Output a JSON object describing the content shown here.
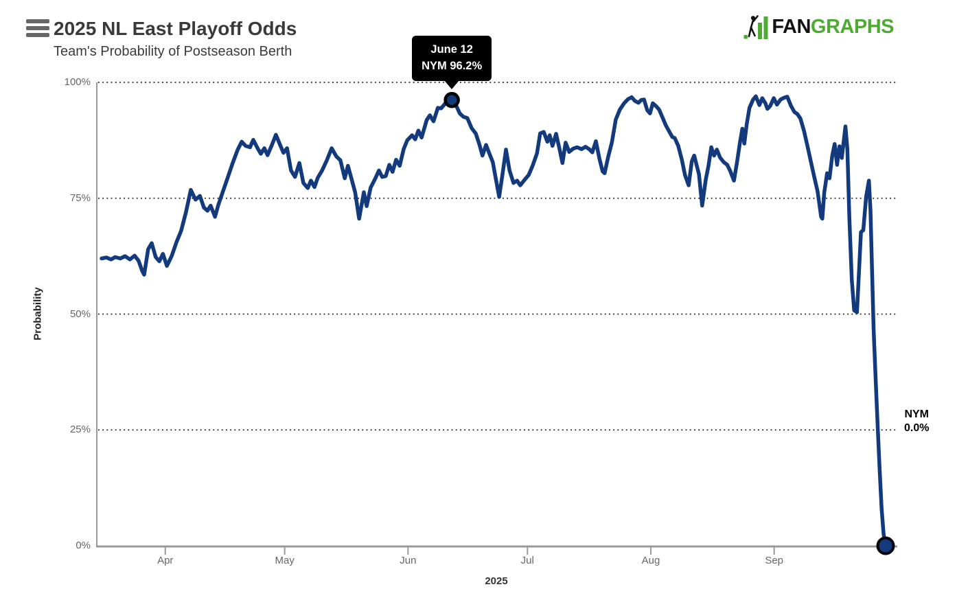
{
  "header": {
    "title": "2025 NL East Playoff Odds",
    "subtitle": "Team's Probability of Postseason Berth",
    "logo": {
      "fan": "FAN",
      "graphs": "GRAPHS"
    }
  },
  "tooltip": {
    "line1": "June 12",
    "line2": "NYM 96.2%"
  },
  "series_end_label": {
    "team": "NYM",
    "value": "0.0%"
  },
  "colors": {
    "line": "#123a7c",
    "marker_stroke": "#000000",
    "grid": "#1a1a1a",
    "axis": "#9a9a9a",
    "tick_label": "#666666",
    "title_text": "#3a3a3a",
    "logo_green": "#4dab33",
    "logo_black": "#111111",
    "tooltip_bg": "#000000",
    "tooltip_text": "#ffffff"
  },
  "chart_data": {
    "type": "line",
    "title": "2025 NL East Playoff Odds",
    "subtitle": "Team's Probability of Postseason Berth",
    "xlabel": "2025",
    "ylabel": "Probability",
    "ylim": [
      0,
      100
    ],
    "grid": "dotted horizontal",
    "legend": "none",
    "yticks": [
      {
        "value": 0,
        "label": "0%"
      },
      {
        "value": 25,
        "label": "25%"
      },
      {
        "value": 50,
        "label": "50%"
      },
      {
        "value": 75,
        "label": "75%"
      },
      {
        "value": 100,
        "label": "100%"
      }
    ],
    "x_axis": {
      "unit": "days since Mar 16, 2025",
      "start_day": 0,
      "end_day": 197,
      "month_ticks": [
        {
          "label": "Apr",
          "day": 16
        },
        {
          "label": "May",
          "day": 46
        },
        {
          "label": "Jun",
          "day": 77
        },
        {
          "label": "Jul",
          "day": 107
        },
        {
          "label": "Aug",
          "day": 138
        },
        {
          "label": "Sep",
          "day": 169
        }
      ]
    },
    "annotations": [
      {
        "id": "peak",
        "series": "NYM",
        "day": 88,
        "value": 96.2,
        "date_label": "June 12",
        "tooltip": true,
        "marker": true
      },
      {
        "id": "final",
        "series": "NYM",
        "day": 197,
        "value": 0.0,
        "label": "NYM 0.0%",
        "tooltip": false,
        "marker": true
      }
    ],
    "series": [
      {
        "name": "NYM",
        "color": "#123a7c",
        "points": [
          [
            0,
            62.0
          ],
          [
            1.2,
            62.2
          ],
          [
            2.4,
            61.8
          ],
          [
            3.4,
            62.3
          ],
          [
            4.7,
            62.0
          ],
          [
            5.9,
            62.5
          ],
          [
            7.1,
            61.8
          ],
          [
            8.3,
            62.6
          ],
          [
            9.3,
            61.5
          ],
          [
            10.2,
            59.3
          ],
          [
            10.7,
            58.5
          ],
          [
            11.7,
            64.0
          ],
          [
            12.6,
            65.3
          ],
          [
            13.6,
            62.3
          ],
          [
            14.5,
            61.4
          ],
          [
            15.4,
            63.0
          ],
          [
            16.4,
            60.4
          ],
          [
            17.6,
            62.5
          ],
          [
            18.8,
            65.5
          ],
          [
            20,
            68.0
          ],
          [
            21.2,
            72.0
          ],
          [
            22.4,
            76.8
          ],
          [
            23.6,
            74.7
          ],
          [
            24.7,
            75.5
          ],
          [
            25.7,
            73.0
          ],
          [
            26.6,
            72.3
          ],
          [
            27.4,
            73.4
          ],
          [
            28.5,
            71.0
          ],
          [
            29.3,
            73.5
          ],
          [
            30.5,
            76.5
          ],
          [
            31.7,
            79.5
          ],
          [
            32.9,
            82.5
          ],
          [
            34.2,
            85.5
          ],
          [
            35.2,
            87.2
          ],
          [
            36.2,
            86.3
          ],
          [
            37.3,
            86.0
          ],
          [
            38.1,
            87.6
          ],
          [
            39.2,
            85.8
          ],
          [
            40,
            84.6
          ],
          [
            40.9,
            85.8
          ],
          [
            41.7,
            84.3
          ],
          [
            42.8,
            86.5
          ],
          [
            43.8,
            88.7
          ],
          [
            44.9,
            86.4
          ],
          [
            45.7,
            84.8
          ],
          [
            46.6,
            85.8
          ],
          [
            47.6,
            81.0
          ],
          [
            48.6,
            79.6
          ],
          [
            49.7,
            82.6
          ],
          [
            50.7,
            78.3
          ],
          [
            51.8,
            77.2
          ],
          [
            52.6,
            78.8
          ],
          [
            53.5,
            77.4
          ],
          [
            54.3,
            79.4
          ],
          [
            55.4,
            81.0
          ],
          [
            56.6,
            83.2
          ],
          [
            57.8,
            85.8
          ],
          [
            59,
            84.0
          ],
          [
            60,
            83.2
          ],
          [
            61.1,
            79.3
          ],
          [
            61.9,
            82.0
          ],
          [
            62.8,
            79.2
          ],
          [
            63.7,
            76.3
          ],
          [
            64.7,
            70.6
          ],
          [
            65.9,
            76.3
          ],
          [
            66.6,
            73.3
          ],
          [
            67.6,
            77.3
          ],
          [
            68.8,
            79.3
          ],
          [
            69.7,
            81.0
          ],
          [
            70.5,
            79.6
          ],
          [
            71.4,
            79.8
          ],
          [
            72.3,
            82.2
          ],
          [
            73.1,
            80.7
          ],
          [
            74,
            83.3
          ],
          [
            74.9,
            82.0
          ],
          [
            75.9,
            85.6
          ],
          [
            76.8,
            87.5
          ],
          [
            78,
            88.6
          ],
          [
            78.8,
            87.7
          ],
          [
            79.6,
            89.6
          ],
          [
            80.4,
            88.1
          ],
          [
            81.7,
            91.9
          ],
          [
            82.5,
            92.9
          ],
          [
            83.4,
            91.6
          ],
          [
            84.5,
            94.5
          ],
          [
            85.3,
            94.4
          ],
          [
            86.5,
            95.6
          ],
          [
            88,
            96.2
          ],
          [
            89.2,
            94.8
          ],
          [
            90,
            93.3
          ],
          [
            90.9,
            92.6
          ],
          [
            91.9,
            92.3
          ],
          [
            93,
            90.1
          ],
          [
            94,
            89.0
          ],
          [
            94.9,
            86.7
          ],
          [
            95.7,
            84.2
          ],
          [
            96.6,
            86.5
          ],
          [
            97.5,
            84.5
          ],
          [
            98.3,
            82.8
          ],
          [
            99.2,
            78.5
          ],
          [
            99.9,
            75.3
          ],
          [
            100.7,
            80.0
          ],
          [
            101.6,
            85.5
          ],
          [
            102.5,
            81.0
          ],
          [
            103.5,
            78.3
          ],
          [
            104.4,
            78.8
          ],
          [
            105.2,
            77.8
          ],
          [
            106.3,
            79.0
          ],
          [
            107.3,
            80.0
          ],
          [
            108.3,
            82.0
          ],
          [
            109.4,
            84.7
          ],
          [
            110.2,
            89.0
          ],
          [
            111.1,
            89.3
          ],
          [
            112,
            87.2
          ],
          [
            112.6,
            88.6
          ],
          [
            113.3,
            86.3
          ],
          [
            114.2,
            88.9
          ],
          [
            115.1,
            85.5
          ],
          [
            115.8,
            82.6
          ],
          [
            116.6,
            87.0
          ],
          [
            117.5,
            85.0
          ],
          [
            118.5,
            85.7
          ],
          [
            119.5,
            86.0
          ],
          [
            120.6,
            85.6
          ],
          [
            121.6,
            86.1
          ],
          [
            122.5,
            85.6
          ],
          [
            123.3,
            84.9
          ],
          [
            124.2,
            87.3
          ],
          [
            125.1,
            83.5
          ],
          [
            125.9,
            80.8
          ],
          [
            126.4,
            80.4
          ],
          [
            127.3,
            84.0
          ],
          [
            128.2,
            87.0
          ],
          [
            129.2,
            92.0
          ],
          [
            130.2,
            94.1
          ],
          [
            131.3,
            95.5
          ],
          [
            132.3,
            96.4
          ],
          [
            133.2,
            96.8
          ],
          [
            134,
            96.0
          ],
          [
            134.9,
            95.6
          ],
          [
            135.6,
            96.2
          ],
          [
            136.3,
            96.3
          ],
          [
            137.1,
            94.0
          ],
          [
            137.8,
            93.3
          ],
          [
            138.5,
            95.5
          ],
          [
            139.4,
            94.8
          ],
          [
            140.1,
            94.1
          ],
          [
            140.9,
            92.5
          ],
          [
            141.8,
            90.7
          ],
          [
            142.7,
            89.3
          ],
          [
            143.4,
            88.2
          ],
          [
            144,
            88.0
          ],
          [
            144.9,
            86.3
          ],
          [
            145.8,
            83.3
          ],
          [
            146.6,
            80.0
          ],
          [
            147.5,
            77.8
          ],
          [
            148.3,
            83.0
          ],
          [
            148.9,
            84.2
          ],
          [
            149.4,
            82.5
          ],
          [
            150.1,
            80.2
          ],
          [
            150.9,
            73.4
          ],
          [
            151.8,
            79.0
          ],
          [
            152.5,
            82.0
          ],
          [
            153.2,
            86.0
          ],
          [
            153.9,
            84.2
          ],
          [
            154.6,
            85.5
          ],
          [
            155.4,
            83.8
          ],
          [
            156.3,
            82.8
          ],
          [
            157.2,
            82.2
          ],
          [
            158,
            80.8
          ],
          [
            158.9,
            78.8
          ],
          [
            159.7,
            83.0
          ],
          [
            160.4,
            87.0
          ],
          [
            161,
            90.0
          ],
          [
            161.5,
            86.8
          ],
          [
            162.1,
            91.0
          ],
          [
            162.8,
            94.5
          ],
          [
            163.7,
            96.3
          ],
          [
            164.4,
            97.0
          ],
          [
            165.3,
            95.1
          ],
          [
            166,
            96.6
          ],
          [
            166.8,
            95.5
          ],
          [
            167.3,
            94.3
          ],
          [
            168,
            94.9
          ],
          [
            168.9,
            96.6
          ],
          [
            169.7,
            95.2
          ],
          [
            170.6,
            96.3
          ],
          [
            171.5,
            96.7
          ],
          [
            172.3,
            96.9
          ],
          [
            173.2,
            95.0
          ],
          [
            174.1,
            93.6
          ],
          [
            174.8,
            93.2
          ],
          [
            175.6,
            92.2
          ],
          [
            176.5,
            89.5
          ],
          [
            177.3,
            86.5
          ],
          [
            178.2,
            83.0
          ],
          [
            179.1,
            79.5
          ],
          [
            179.9,
            76.5
          ],
          [
            180.8,
            71.0
          ],
          [
            181.1,
            70.6
          ],
          [
            181.6,
            76.3
          ],
          [
            182.3,
            80.4
          ],
          [
            182.9,
            79.3
          ],
          [
            183.6,
            84.2
          ],
          [
            184.2,
            86.7
          ],
          [
            184.8,
            82.2
          ],
          [
            185.4,
            86.2
          ],
          [
            186,
            83.7
          ],
          [
            186.9,
            90.5
          ],
          [
            187.4,
            85.6
          ],
          [
            187.9,
            70.8
          ],
          [
            188.5,
            57.5
          ],
          [
            189.1,
            50.8
          ],
          [
            189.8,
            50.4
          ],
          [
            190.3,
            59.0
          ],
          [
            190.8,
            67.7
          ],
          [
            191.4,
            68.1
          ],
          [
            192.1,
            75.3
          ],
          [
            192.8,
            78.8
          ],
          [
            193.2,
            72.3
          ],
          [
            193.5,
            62.5
          ],
          [
            194,
            46.5
          ],
          [
            194.5,
            36.0
          ],
          [
            195,
            26.0
          ],
          [
            195.5,
            16.5
          ],
          [
            196,
            8.0
          ],
          [
            196.5,
            2.5
          ],
          [
            197,
            0.0
          ]
        ]
      }
    ]
  }
}
